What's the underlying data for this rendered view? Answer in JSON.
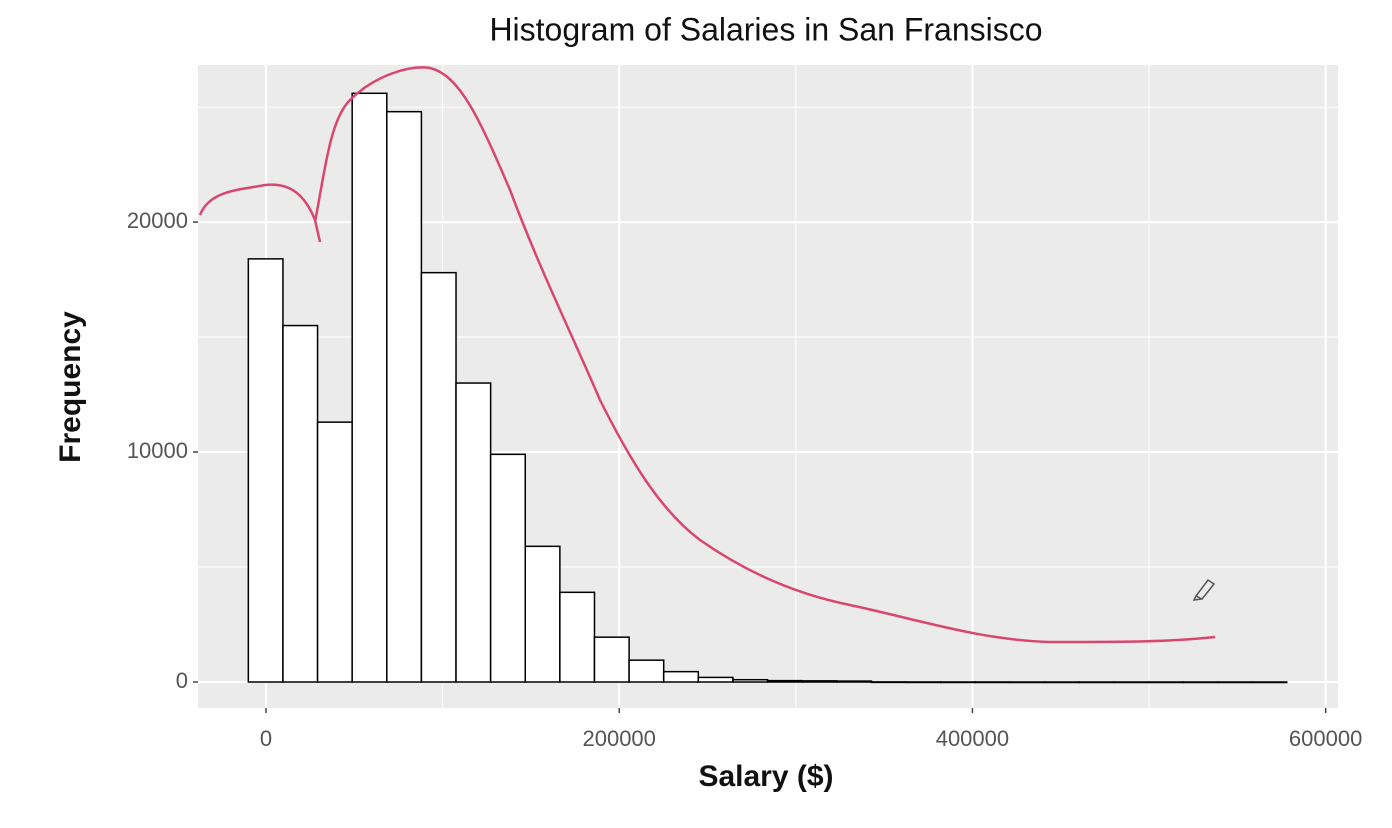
{
  "chart_data": {
    "type": "histogram",
    "title": "Histogram of Salaries in San Fransisco",
    "xlabel": "Salary ($)",
    "ylabel": "Frequency",
    "bins": [
      -10000,
      9600,
      29200,
      48800,
      68400,
      88000,
      107600,
      127200,
      146800,
      166400,
      186000,
      205600,
      225200,
      244800,
      264400,
      284000,
      303600,
      323200,
      342800,
      362400,
      382000,
      401600,
      421200,
      440800,
      460400,
      480000,
      499600,
      519200,
      538800,
      558400,
      578000
    ],
    "values": [
      18400,
      15500,
      11300,
      25600,
      24800,
      17800,
      13000,
      9900,
      5900,
      3900,
      1950,
      950,
      450,
      200,
      100,
      60,
      50,
      40,
      5,
      3,
      2,
      2,
      1,
      1,
      1,
      1,
      1,
      1,
      1,
      1
    ],
    "fill": "#ffffff",
    "edgecolor": "#000000",
    "background": "#ebebeb",
    "xlim": [
      -38500,
      607000
    ],
    "ylim": [
      -1130,
      26830
    ],
    "xticks": [
      0,
      200000,
      400000,
      600000
    ],
    "yticks": [
      0,
      10000,
      20000
    ],
    "minor_xticks": [
      100000,
      300000,
      500000
    ],
    "minor_yticks": [
      5000,
      15000,
      25000
    ],
    "grid": true
  }
}
